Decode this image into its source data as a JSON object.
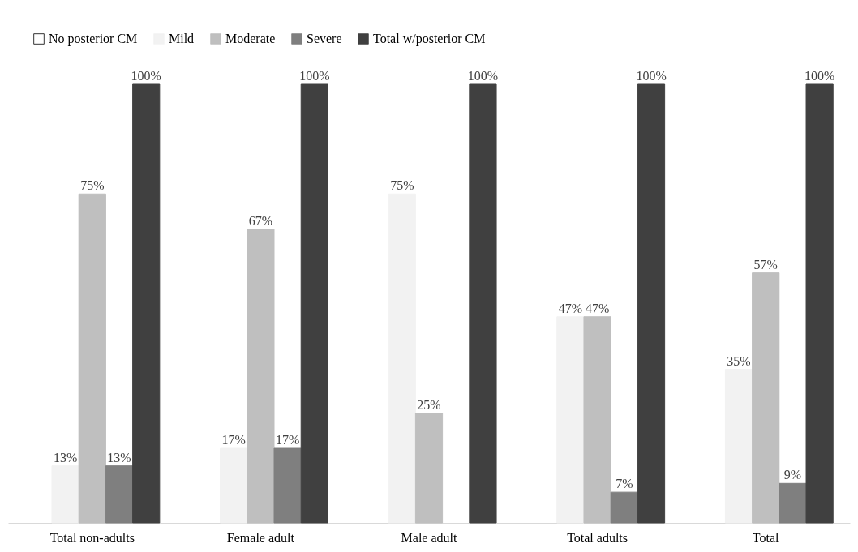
{
  "chart_data": {
    "type": "bar",
    "categories": [
      "Total non-adults",
      "Female adult",
      "Male adult",
      "Total adults",
      "Total"
    ],
    "series": [
      {
        "name": "No posterior CM",
        "color": "#ffffff",
        "values": [
          null,
          null,
          null,
          null,
          null
        ],
        "value_labels": [
          null,
          null,
          null,
          null,
          null
        ]
      },
      {
        "name": "Mild",
        "color": "#f2f2f2",
        "values": [
          13,
          17,
          75,
          47,
          35
        ],
        "value_labels": [
          "13%",
          "17%",
          "75%",
          "47%",
          "35%"
        ]
      },
      {
        "name": "Moderate",
        "color": "#bfbfbf",
        "values": [
          75,
          67,
          25,
          47,
          57
        ],
        "value_labels": [
          "75%",
          "67%",
          "25%",
          "47%",
          "57%"
        ]
      },
      {
        "name": "Severe",
        "color": "#7f7f7f",
        "values": [
          13,
          17,
          null,
          7,
          9
        ],
        "value_labels": [
          "13%",
          "17%",
          null,
          "7%",
          "9%"
        ]
      },
      {
        "name": "Total w/posterior CM",
        "color": "#404040",
        "values": [
          100,
          100,
          100,
          100,
          100
        ],
        "value_labels": [
          "100%",
          "100%",
          "100%",
          "100%",
          "100%"
        ]
      }
    ],
    "legend": "top",
    "grid": false
  }
}
